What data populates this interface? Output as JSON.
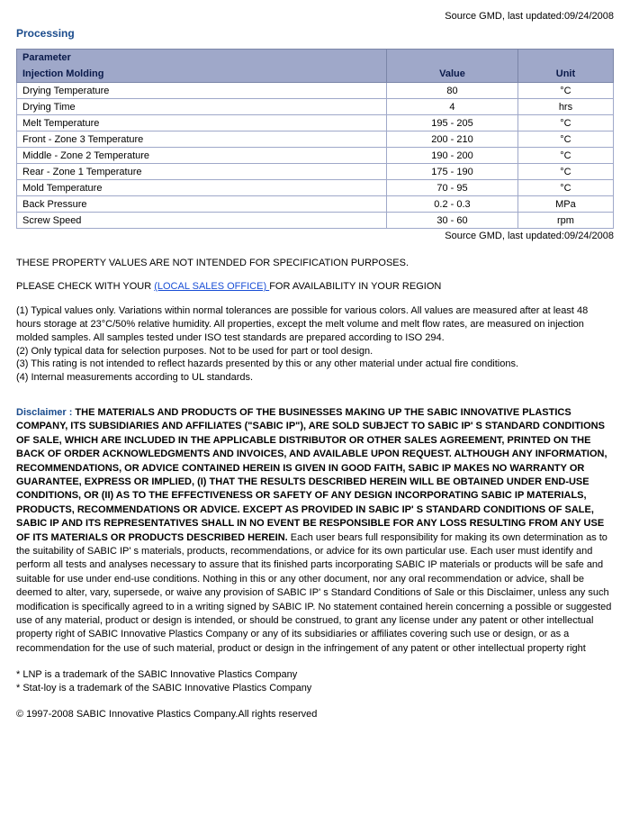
{
  "source_top": "Source GMD, last updated:09/24/2008",
  "section_title": "Processing",
  "table": {
    "header_top": "Parameter",
    "header_sub_param": "Injection Molding",
    "header_value": "Value",
    "header_unit": "Unit",
    "rows": [
      {
        "param": "Drying Temperature",
        "value": "80",
        "unit": "°C"
      },
      {
        "param": "Drying Time",
        "value": "4",
        "unit": "hrs"
      },
      {
        "param": "Melt Temperature",
        "value": "195 - 205",
        "unit": "°C"
      },
      {
        "param": "Front - Zone 3 Temperature",
        "value": "200 - 210",
        "unit": "°C"
      },
      {
        "param": "Middle - Zone 2 Temperature",
        "value": "190 - 200",
        "unit": "°C"
      },
      {
        "param": "Rear - Zone 1 Temperature",
        "value": "175 - 190",
        "unit": "°C"
      },
      {
        "param": "Mold Temperature",
        "value": "70 - 95",
        "unit": "°C"
      },
      {
        "param": "Back Pressure",
        "value": "0.2 - 0.3",
        "unit": "MPa"
      },
      {
        "param": "Screw Speed",
        "value": "30 - 60",
        "unit": "rpm"
      }
    ],
    "col_widths": {
      "param_pct": 62,
      "value_pct": 22,
      "unit_pct": 16
    }
  },
  "source_under": "Source GMD, last updated:09/24/2008",
  "notice1": "THESE PROPERTY VALUES ARE NOT INTENDED FOR SPECIFICATION PURPOSES.",
  "notice2_pre": "PLEASE CHECK WITH YOUR ",
  "notice2_link": "(LOCAL SALES OFFICE) ",
  "notice2_post": "FOR AVAILABILITY IN YOUR REGION",
  "footnotes": [
    "(1) Typical values only. Variations within normal tolerances are possible for various colors. All values are measured after at least 48 hours storage at 23°C/50% relative humidity. All properties, except the melt volume and melt flow rates, are measured on injection molded samples. All samples tested under ISO test standards are prepared according to ISO 294.",
    "(2) Only typical data for selection purposes. Not to be used for part or tool design.",
    "(3) This rating is not intended to reflect hazards presented by this or any other material under actual fire conditions.",
    "(4) Internal measurements according to UL standards."
  ],
  "disclaimer": {
    "label": "Disclaimer : ",
    "bold": "THE MATERIALS AND PRODUCTS OF THE BUSINESSES MAKING UP THE SABIC INNOVATIVE PLASTICS COMPANY, ITS SUBSIDIARIES AND AFFILIATES (\"SABIC IP\"), ARE SOLD SUBJECT TO SABIC IP' S STANDARD CONDITIONS OF SALE, WHICH ARE INCLUDED IN THE APPLICABLE DISTRIBUTOR OR OTHER SALES AGREEMENT, PRINTED ON THE BACK OF ORDER ACKNOWLEDGMENTS AND INVOICES, AND AVAILABLE UPON REQUEST. ALTHOUGH ANY INFORMATION, RECOMMENDATIONS, OR ADVICE CONTAINED HEREIN IS GIVEN IN GOOD FAITH, SABIC IP MAKES NO WARRANTY OR GUARANTEE, EXPRESS OR IMPLIED, (I) THAT THE RESULTS DESCRIBED HEREIN WILL BE OBTAINED UNDER END-USE CONDITIONS, OR (II) AS TO THE EFFECTIVENESS OR SAFETY OF ANY DESIGN INCORPORATING SABIC IP MATERIALS, PRODUCTS, RECOMMENDATIONS OR ADVICE. EXCEPT AS PROVIDED IN SABIC IP' S STANDARD CONDITIONS OF SALE, SABIC IP AND ITS REPRESENTATIVES SHALL IN NO EVENT BE RESPONSIBLE FOR ANY LOSS RESULTING FROM ANY USE OF ITS MATERIALS OR PRODUCTS DESCRIBED HEREIN.",
    "rest": " Each user bears full responsibility for making its own determination as to the suitability of SABIC IP' s materials, products, recommendations, or advice for its own particular use. Each user must identify and perform all tests and analyses necessary to assure that its finished parts incorporating SABIC IP materials or products will be safe and suitable for use under end-use conditions. Nothing in this or any other document, nor any oral recommendation or advice, shall be deemed to alter, vary, supersede, or waive any provision of SABIC IP' s Standard Conditions of Sale or this Disclaimer, unless any such modification is specifically agreed to in a writing signed by SABIC IP. No statement contained herein concerning a possible or suggested use of any material, product or design is intended, or should be construed, to grant any license under any patent or other intellectual property right of SABIC Innovative Plastics Company or any of its subsidiaries or affiliates covering such use or design, or as a recommendation for the use of such material, product or design in the infringement of any patent or other intellectual property right"
  },
  "trademarks": [
    "* LNP is a trademark of the SABIC Innovative Plastics Company",
    "* Stat-loy is a trademark of the SABIC Innovative Plastics Company"
  ],
  "copyright": "© 1997-2008 SABIC Innovative Plastics Company.All rights reserved"
}
